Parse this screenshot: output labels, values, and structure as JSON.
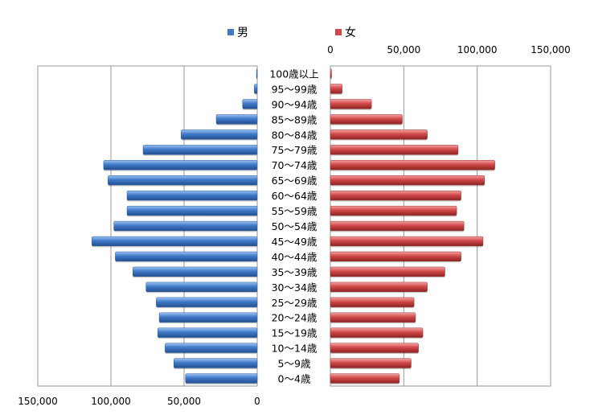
{
  "chart_data": {
    "type": "bar",
    "orientation": "horizontal",
    "layout": "population-pyramid",
    "categories": [
      "0～4歳",
      "5～9歳",
      "10～14歳",
      "15～19歳",
      "20～24歳",
      "25～29歳",
      "30～34歳",
      "35～39歳",
      "40～44歳",
      "45～49歳",
      "50～54歳",
      "55～59歳",
      "60～64歳",
      "65～69歳",
      "70～74歳",
      "75～79歳",
      "80～84歳",
      "85～89歳",
      "90～94歳",
      "95～99歳",
      "100歳以上"
    ],
    "series": [
      {
        "name": "男",
        "color": "#3f79c8",
        "values": [
          49000,
          57000,
          63000,
          68000,
          67000,
          69000,
          76000,
          85000,
          97000,
          113000,
          98000,
          89000,
          89000,
          102000,
          105000,
          78000,
          52000,
          28000,
          10000,
          2000,
          500
        ]
      },
      {
        "name": "女",
        "color": "#d24848",
        "values": [
          47000,
          55000,
          60000,
          63000,
          58000,
          57000,
          66000,
          78000,
          89000,
          104000,
          91000,
          86000,
          89000,
          105000,
          112000,
          87000,
          66000,
          49000,
          28000,
          8000,
          800
        ]
      }
    ],
    "left_ticks": [
      "150,000",
      "100,000",
      "50,000",
      "0"
    ],
    "right_ticks": [
      "0",
      "50,000",
      "100,000",
      "150,000"
    ],
    "xlim": [
      0,
      150000
    ],
    "grid": true,
    "legend_position": "top"
  }
}
